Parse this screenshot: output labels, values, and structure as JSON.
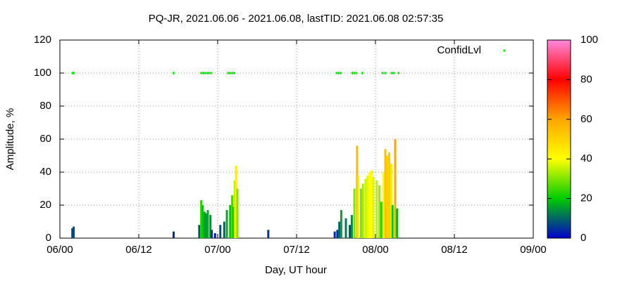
{
  "chart_data": {
    "type": "bar",
    "title": "PQ-JR, 2021.06.06 - 2021.06.08, lastTID: 2021.06.08 02:57:35",
    "xlabel": "Day, UT hour",
    "ylabel": "Amplitude, %",
    "x": [
      1.9,
      2.1,
      17.3,
      21.2,
      21.5,
      21.7,
      22.0,
      22.2,
      22.5,
      22.9,
      23.1,
      23.6,
      24.4,
      25.0,
      25.4,
      25.9,
      26.2,
      26.4,
      26.6,
      26.8,
      27.0,
      31.7,
      41.8,
      42.2,
      42.5,
      42.8,
      43.5,
      44.1,
      44.4,
      44.8,
      45.2,
      45.4,
      45.8,
      46.1,
      46.5,
      46.8,
      47.1,
      47.4,
      47.7,
      48.2,
      48.6,
      48.9,
      49.2,
      49.5,
      49.8,
      50.1,
      50.4,
      50.6,
      51.0,
      51.3
    ],
    "values": [
      6,
      7,
      4,
      8,
      23,
      20,
      16,
      15,
      17,
      14,
      5,
      3,
      8,
      10,
      17,
      20,
      26,
      19,
      35,
      44,
      30,
      5,
      4,
      5,
      10,
      17,
      12,
      8,
      14,
      30,
      56,
      38,
      30,
      33,
      36,
      38,
      40,
      41,
      37,
      35,
      32,
      22,
      40,
      54,
      50,
      52,
      45,
      20,
      60,
      18
    ],
    "palette": [
      "#0000cc",
      "#00cc00",
      "#ffff00",
      "#ffa500",
      "#ff0000",
      "#ff88dd"
    ],
    "points": {
      "name": "ConfidLvl",
      "color": "#00dd00",
      "x": [
        1.9,
        2.1,
        17.3,
        21.5,
        21.8,
        22.1,
        22.4,
        22.7,
        23.0,
        25.6,
        25.9,
        26.2,
        26.5,
        42.1,
        42.4,
        42.7,
        44.5,
        44.8,
        45.1,
        46.0,
        49.1,
        49.5,
        50.5,
        50.8,
        51.5
      ],
      "values": [
        100,
        100,
        100,
        100,
        100,
        100,
        100,
        100,
        100,
        100,
        100,
        100,
        100,
        100,
        100,
        100,
        100,
        100,
        100,
        100,
        100,
        100,
        100,
        100,
        100
      ]
    },
    "xlim": [
      0,
      72
    ],
    "xticks": [
      {
        "value": 0,
        "label": "06/00"
      },
      {
        "value": 12,
        "label": "06/12"
      },
      {
        "value": 24,
        "label": "07/00"
      },
      {
        "value": 36,
        "label": "07/12"
      },
      {
        "value": 48,
        "label": "08/00"
      },
      {
        "value": 60,
        "label": "08/12"
      },
      {
        "value": 72,
        "label": "09/00"
      }
    ],
    "ylim": [
      0,
      120
    ],
    "yticks": [
      0,
      20,
      40,
      60,
      80,
      100,
      120
    ],
    "cblim": [
      0,
      100
    ],
    "cbticks": [
      0,
      20,
      40,
      60,
      80,
      100
    ],
    "grid": true,
    "legend": "top-right"
  }
}
